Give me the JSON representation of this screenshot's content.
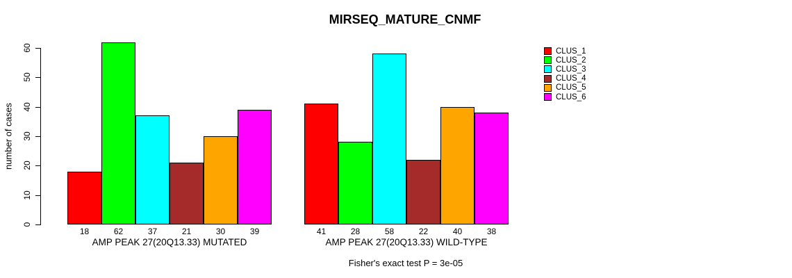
{
  "chart_data": {
    "type": "bar",
    "title": "MIRSEQ_MATURE_CNMF",
    "ylabel": "number of cases",
    "xlabel": "",
    "ylim": [
      0,
      60
    ],
    "yticks": [
      0,
      10,
      20,
      30,
      40,
      50,
      60
    ],
    "grid": false,
    "legend_position": "top-right",
    "bar_value_labels_shown": true,
    "categories": [
      "AMP PEAK 27(20Q13.33) MUTATED",
      "AMP PEAK 27(20Q13.33) WILD-TYPE"
    ],
    "series": [
      {
        "name": "CLUS_1",
        "color": "#FF0000",
        "values": [
          18,
          41
        ]
      },
      {
        "name": "CLUS_2",
        "color": "#00FF00",
        "values": [
          62,
          28
        ]
      },
      {
        "name": "CLUS_3",
        "color": "#00FFFF",
        "values": [
          37,
          58
        ]
      },
      {
        "name": "CLUS_4",
        "color": "#A52A2A",
        "values": [
          21,
          22
        ]
      },
      {
        "name": "CLUS_5",
        "color": "#FFA500",
        "values": [
          30,
          40
        ]
      },
      {
        "name": "CLUS_6",
        "color": "#FF00FF",
        "values": [
          39,
          38
        ]
      }
    ],
    "groups": [
      {
        "label": "AMP PEAK 27(20Q13.33) MUTATED",
        "values": [
          18,
          62,
          37,
          21,
          30,
          39
        ]
      },
      {
        "label": "AMP PEAK 27(20Q13.33) WILD-TYPE",
        "values": [
          41,
          28,
          58,
          22,
          40,
          38
        ]
      }
    ],
    "footnote": "Fisher's exact test P = 3e-05"
  }
}
